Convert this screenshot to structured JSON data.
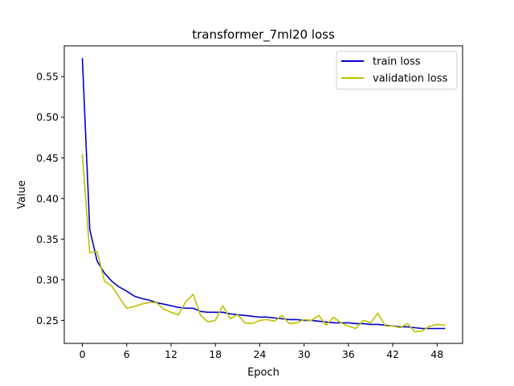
{
  "chart_data": {
    "type": "line",
    "title": "transformer_7ml20 loss",
    "xlabel": "Epoch",
    "ylabel": "Value",
    "xlim": [
      -2.45,
      51.45
    ],
    "ylim": [
      0.2217,
      0.5878
    ],
    "xticks": [
      0,
      6,
      12,
      18,
      24,
      30,
      36,
      42,
      48
    ],
    "yticks": [
      0.25,
      0.3,
      0.35,
      0.4,
      0.45,
      0.5,
      0.55
    ],
    "ytick_labels": [
      "0.25",
      "0.30",
      "0.35",
      "0.40",
      "0.45",
      "0.50",
      "0.55"
    ],
    "grid": false,
    "legend_position": "top-right",
    "x": [
      0,
      1,
      2,
      3,
      4,
      5,
      6,
      7,
      8,
      9,
      10,
      11,
      12,
      13,
      14,
      15,
      16,
      17,
      18,
      19,
      20,
      21,
      22,
      23,
      24,
      25,
      26,
      27,
      28,
      29,
      30,
      31,
      32,
      33,
      34,
      35,
      36,
      37,
      38,
      39,
      40,
      41,
      42,
      43,
      44,
      45,
      46,
      47,
      48,
      49
    ],
    "series": [
      {
        "name": "train loss",
        "color": "#0000cc",
        "values": [
          0.572,
          0.362,
          0.323,
          0.308,
          0.298,
          0.291,
          0.286,
          0.28,
          0.277,
          0.275,
          0.272,
          0.27,
          0.268,
          0.266,
          0.265,
          0.265,
          0.261,
          0.26,
          0.26,
          0.26,
          0.258,
          0.257,
          0.256,
          0.255,
          0.254,
          0.254,
          0.253,
          0.252,
          0.251,
          0.251,
          0.25,
          0.25,
          0.249,
          0.248,
          0.247,
          0.247,
          0.247,
          0.246,
          0.246,
          0.245,
          0.245,
          0.244,
          0.243,
          0.242,
          0.242,
          0.241,
          0.24,
          0.24,
          0.24,
          0.24
        ]
      },
      {
        "name": "validation loss",
        "color": "#bfbf00",
        "values": [
          0.454,
          0.333,
          0.335,
          0.298,
          0.292,
          0.278,
          0.265,
          0.267,
          0.27,
          0.272,
          0.272,
          0.264,
          0.26,
          0.257,
          0.273,
          0.282,
          0.256,
          0.248,
          0.25,
          0.268,
          0.252,
          0.257,
          0.247,
          0.246,
          0.25,
          0.251,
          0.249,
          0.256,
          0.246,
          0.247,
          0.251,
          0.25,
          0.256,
          0.244,
          0.254,
          0.247,
          0.243,
          0.24,
          0.25,
          0.247,
          0.259,
          0.243,
          0.243,
          0.241,
          0.246,
          0.236,
          0.237,
          0.243,
          0.245,
          0.244
        ]
      }
    ]
  }
}
